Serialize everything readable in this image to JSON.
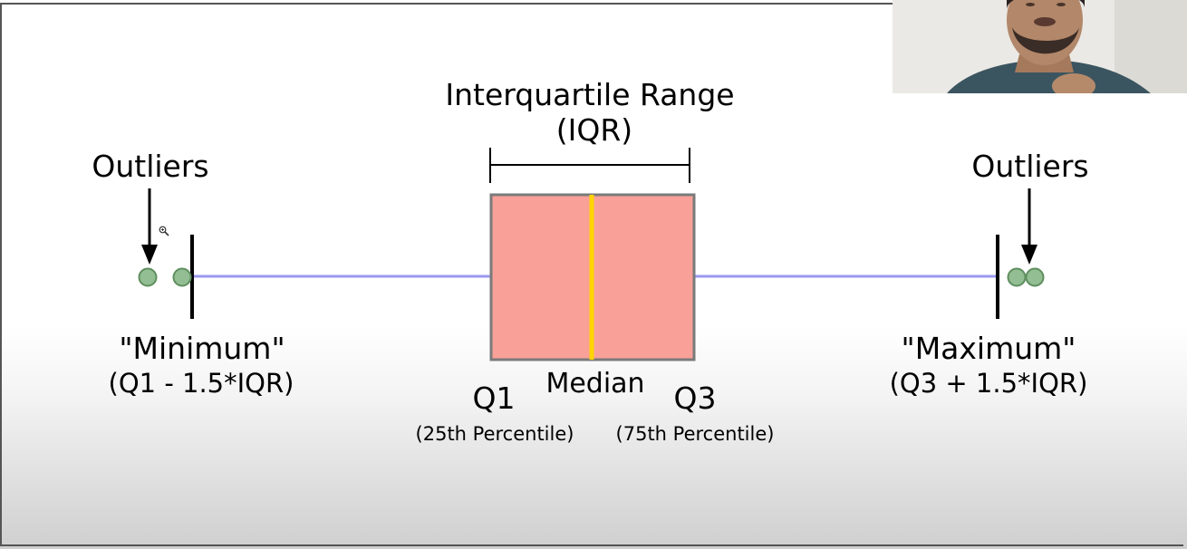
{
  "diagram": {
    "iqr_title": "Interquartile Range",
    "iqr_abbrev": "(IQR)",
    "outliers_left_label": "Outliers",
    "outliers_right_label": "Outliers",
    "minimum_label": "\"Minimum\"",
    "minimum_formula": "(Q1 - 1.5*IQR)",
    "maximum_label": "\"Maximum\"",
    "maximum_formula": "(Q3 + 1.5*IQR)",
    "q1_label": "Q1",
    "q1_sub": "(25th Percentile)",
    "median_label": "Median",
    "q3_label": "Q3",
    "q3_sub": "(75th Percentile)"
  },
  "colors": {
    "box_fill": "#f9a199",
    "box_stroke": "#7a7a7a",
    "median_line": "#ffd400",
    "whisker": "#9a9af0",
    "outlier_fill": "#93bd93",
    "outlier_stroke": "#5f8f5f",
    "ink": "#000000"
  },
  "icons": {
    "cursor": "magnifier-icon",
    "arrow": "down-arrow-icon"
  }
}
